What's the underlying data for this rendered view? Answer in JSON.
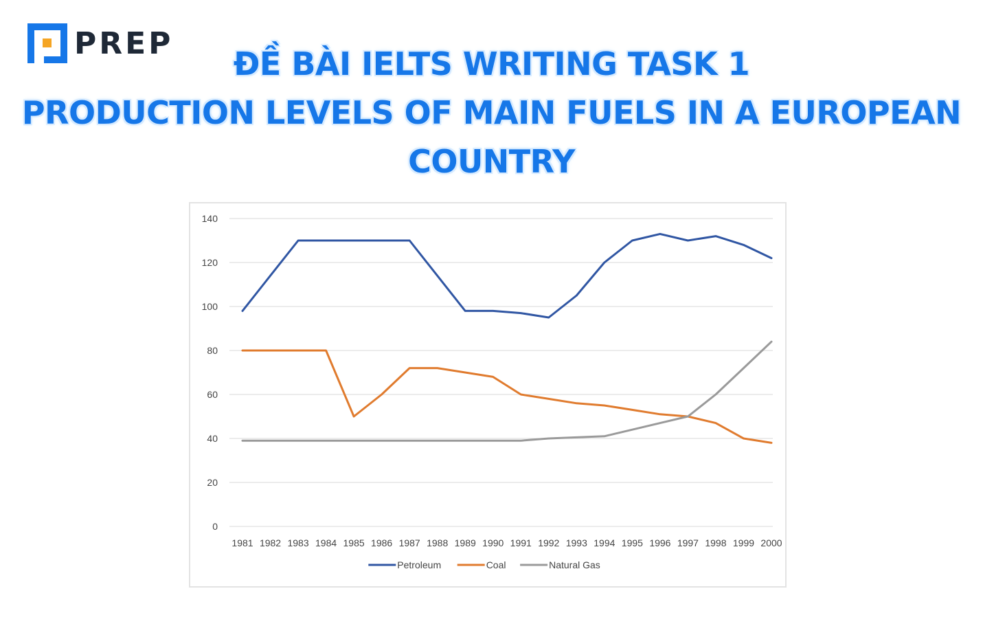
{
  "brand": {
    "name": "PREP",
    "logo_icon": "prep-logo-icon",
    "color_dark": "#1f2937",
    "color_blue": "#1677e8",
    "color_orange": "#f5a524"
  },
  "heading": {
    "line1": "ĐỀ BÀI IELTS WRITING TASK 1",
    "line2": "PRODUCTION LEVELS OF MAIN FUELS IN A EUROPEAN",
    "line3": "COUNTRY"
  },
  "chart_data": {
    "type": "line",
    "x": [
      "1981",
      "1982",
      "1983",
      "1984",
      "1985",
      "1986",
      "1987",
      "1988",
      "1989",
      "1990",
      "1991",
      "1992",
      "1993",
      "1994",
      "1995",
      "1996",
      "1997",
      "1998",
      "1999",
      "2000"
    ],
    "ylim": [
      0,
      140
    ],
    "yticks": [
      0,
      20,
      40,
      60,
      80,
      100,
      120,
      140
    ],
    "grid": true,
    "legend_position": "bottom",
    "series": [
      {
        "name": "Petroleum",
        "color": "#3056a3",
        "values": [
          98,
          114,
          130,
          130,
          130,
          130,
          130,
          114,
          98,
          98,
          97,
          95,
          105,
          120,
          130,
          133,
          130,
          132,
          128,
          122
        ]
      },
      {
        "name": "Coal",
        "color": "#e07b2e",
        "values": [
          80,
          80,
          80,
          80,
          50,
          60,
          72,
          72,
          70,
          68,
          60,
          58,
          56,
          55,
          53,
          51,
          50,
          47,
          40,
          38
        ]
      },
      {
        "name": "Natural Gas",
        "color": "#9a9a9a",
        "values": [
          39,
          39,
          39,
          39,
          39,
          39,
          39,
          39,
          39,
          39,
          39,
          40,
          40.5,
          41,
          44,
          47,
          50,
          60,
          72,
          84
        ]
      }
    ]
  }
}
